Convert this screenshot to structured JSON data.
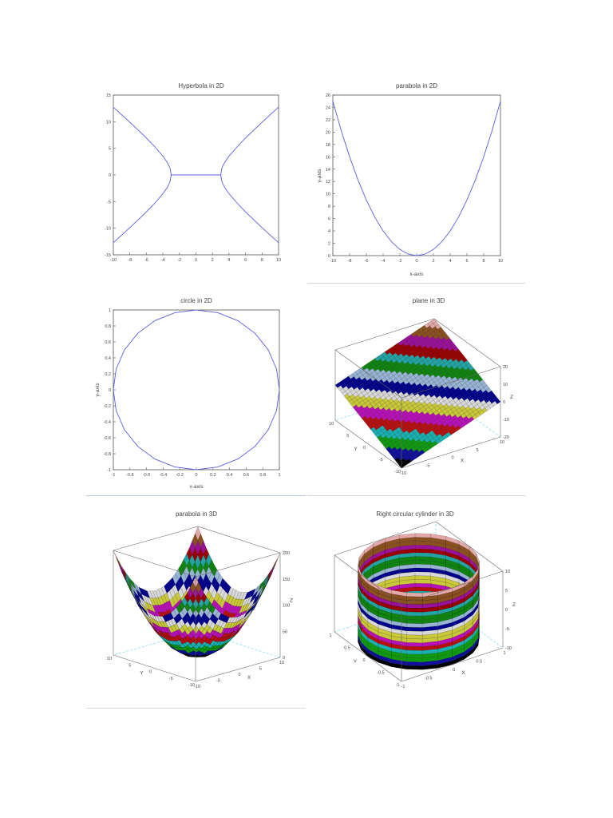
{
  "colormap": [
    "#000000",
    "#10109a",
    "#109a10",
    "#18b0b0",
    "#b81010",
    "#b810b8",
    "#c8c838",
    "#d8d8d8",
    "#00008c",
    "#98b4d4",
    "#108410",
    "#22a4a4",
    "#9a0000",
    "#9a109a",
    "#8a5020",
    "#e4a8a8"
  ],
  "chart_data": [
    {
      "type": "line",
      "title": "Hyperbola in 2D",
      "xlabel": "",
      "ylabel": "",
      "xlim": [
        -10,
        10
      ],
      "ylim": [
        -15,
        15
      ],
      "xticks": [
        -10,
        -8,
        -6,
        -4,
        -2,
        0,
        2,
        4,
        6,
        8,
        10
      ],
      "yticks": [
        -15,
        -10,
        -5,
        0,
        5,
        10,
        15
      ],
      "grid": false,
      "line_color": "#5c5ce0",
      "series": [
        {
          "x": [
            3,
            3.1,
            3.25,
            3.5,
            4,
            5,
            6,
            7,
            8,
            9,
            10
          ],
          "y": [
            0,
            1.04,
            1.67,
            2.4,
            3.53,
            5.33,
            6.93,
            8.43,
            9.89,
            11.31,
            12.72
          ]
        },
        {
          "x": [
            3,
            3.1,
            3.25,
            3.5,
            4,
            5,
            6,
            7,
            8,
            9,
            10
          ],
          "y": [
            0,
            -1.04,
            -1.67,
            -2.4,
            -3.53,
            -5.33,
            -6.93,
            -8.43,
            -9.89,
            -11.31,
            -12.72
          ]
        },
        {
          "x": [
            -3,
            -3.1,
            -3.25,
            -3.5,
            -4,
            -5,
            -6,
            -7,
            -8,
            -9,
            -10
          ],
          "y": [
            0,
            1.04,
            1.67,
            2.4,
            3.53,
            5.33,
            6.93,
            8.43,
            9.89,
            11.31,
            12.72
          ]
        },
        {
          "x": [
            -3,
            -3.1,
            -3.25,
            -3.5,
            -4,
            -5,
            -6,
            -7,
            -8,
            -9,
            -10
          ],
          "y": [
            0,
            -1.04,
            -1.67,
            -2.4,
            -3.53,
            -5.33,
            -6.93,
            -8.43,
            -9.89,
            -11.31,
            -12.72
          ]
        },
        {
          "x": [
            -3,
            3
          ],
          "y": [
            0,
            0
          ]
        }
      ]
    },
    {
      "type": "line",
      "title": "parabola in 2D",
      "xlabel": "x-axis",
      "ylabel": "y-axis",
      "xlim": [
        -10,
        10
      ],
      "ylim": [
        0,
        26
      ],
      "xticks": [
        -10,
        -8,
        -6,
        -4,
        -2,
        0,
        2,
        4,
        6,
        8,
        10
      ],
      "yticks": [
        0,
        2,
        4,
        6,
        8,
        10,
        12,
        14,
        16,
        18,
        20,
        22,
        24,
        26
      ],
      "grid": false,
      "line_color": "#5c5ce0",
      "series": [
        {
          "x": [
            -10,
            -9,
            -8,
            -7,
            -6,
            -5,
            -4,
            -3,
            -2,
            -1,
            0,
            1,
            2,
            3,
            4,
            5,
            6,
            7,
            8,
            9,
            10
          ],
          "y": [
            25,
            20.25,
            16,
            12.25,
            9,
            6.25,
            4,
            2.25,
            1,
            0.25,
            0,
            0.25,
            1,
            2.25,
            4,
            6.25,
            9,
            12.25,
            16,
            20.25,
            25
          ]
        }
      ]
    },
    {
      "type": "line",
      "title": "circle in 2D",
      "xlabel": "x-axis",
      "ylabel": "y-axis",
      "xlim": [
        -1,
        1
      ],
      "ylim": [
        -1,
        1
      ],
      "xticks": [
        -1,
        -0.8,
        -0.6,
        -0.4,
        -0.2,
        0,
        0.2,
        0.4,
        0.6,
        0.8,
        1
      ],
      "yticks": [
        -1,
        -0.8,
        -0.6,
        -0.4,
        -0.2,
        0,
        0.2,
        0.4,
        0.6,
        0.8,
        1
      ],
      "grid": false,
      "line_color": "#5c5ce0",
      "series": [
        {
          "x": [
            1,
            0.966,
            0.866,
            0.707,
            0.5,
            0.259,
            0,
            -0.259,
            -0.5,
            -0.707,
            -0.866,
            -0.966,
            -1,
            -0.966,
            -0.866,
            -0.707,
            -0.5,
            -0.259,
            0,
            0.259,
            0.5,
            0.707,
            0.866,
            0.966,
            1
          ],
          "y": [
            0,
            0.259,
            0.5,
            0.707,
            0.866,
            0.966,
            1,
            0.966,
            0.866,
            0.707,
            0.5,
            0.259,
            0,
            -0.259,
            -0.5,
            -0.707,
            -0.866,
            -0.966,
            -1,
            -0.966,
            -0.866,
            -0.707,
            -0.5,
            -0.259,
            0
          ]
        }
      ]
    },
    {
      "type": "surface3d",
      "title": "plane in 3D",
      "xlabel": "X",
      "ylabel": "Y",
      "zlabel": "Z",
      "xlim": [
        -10,
        10
      ],
      "ylim": [
        -10,
        10
      ],
      "zlim": [
        -20,
        20
      ],
      "xticks": [
        -10,
        -5,
        0,
        5,
        10
      ],
      "yticks": [
        -10,
        -5,
        0,
        5,
        10
      ],
      "zticks": [
        -20,
        -10,
        0,
        10,
        20
      ],
      "x": [
        -10,
        -8,
        -6,
        -4,
        -2,
        0,
        2,
        4,
        6,
        8,
        10
      ],
      "y": [
        -10,
        -8,
        -6,
        -4,
        -2,
        0,
        2,
        4,
        6,
        8,
        10
      ],
      "z": [
        [
          -20,
          -18,
          -16,
          -14,
          -12,
          -10,
          -8,
          -6,
          -4,
          -2,
          0
        ],
        [
          -18,
          -16,
          -14,
          -12,
          -10,
          -8,
          -6,
          -4,
          -2,
          0,
          2
        ],
        [
          -16,
          -14,
          -12,
          -10,
          -8,
          -6,
          -4,
          -2,
          0,
          2,
          4
        ],
        [
          -14,
          -12,
          -10,
          -8,
          -6,
          -4,
          -2,
          0,
          2,
          4,
          6
        ],
        [
          -12,
          -10,
          -8,
          -6,
          -4,
          -2,
          0,
          2,
          4,
          6,
          8
        ],
        [
          -10,
          -8,
          -6,
          -4,
          -2,
          0,
          2,
          4,
          6,
          8,
          10
        ],
        [
          -8,
          -6,
          -4,
          -2,
          0,
          2,
          4,
          6,
          8,
          10,
          12
        ],
        [
          -6,
          -4,
          -2,
          0,
          2,
          4,
          6,
          8,
          10,
          12,
          14
        ],
        [
          -4,
          -2,
          0,
          2,
          4,
          6,
          8,
          10,
          12,
          14,
          16
        ],
        [
          -2,
          0,
          2,
          4,
          6,
          8,
          10,
          12,
          14,
          16,
          18
        ],
        [
          0,
          2,
          4,
          6,
          8,
          10,
          12,
          14,
          16,
          18,
          20
        ]
      ]
    },
    {
      "type": "surface3d",
      "title": "parabola in 3D",
      "xlabel": "X",
      "ylabel": "Y",
      "zlabel": "Z",
      "xlim": [
        -10,
        10
      ],
      "ylim": [
        -10,
        10
      ],
      "zlim": [
        0,
        200
      ],
      "xticks": [
        -10,
        -5,
        0,
        5,
        10
      ],
      "yticks": [
        -10,
        -5,
        0,
        5,
        10
      ],
      "zticks": [
        0,
        50,
        100,
        150,
        200
      ],
      "x": [
        -10,
        -8,
        -6,
        -4,
        -2,
        0,
        2,
        4,
        6,
        8,
        10
      ],
      "y": [
        -10,
        -8,
        -6,
        -4,
        -2,
        0,
        2,
        4,
        6,
        8,
        10
      ],
      "z": [
        [
          200,
          164,
          136,
          116,
          104,
          100,
          104,
          116,
          136,
          164,
          200
        ],
        [
          164,
          128,
          100,
          80,
          68,
          64,
          68,
          80,
          100,
          128,
          164
        ],
        [
          136,
          100,
          72,
          52,
          40,
          36,
          40,
          52,
          72,
          100,
          136
        ],
        [
          116,
          80,
          52,
          32,
          20,
          16,
          20,
          32,
          52,
          80,
          116
        ],
        [
          104,
          68,
          40,
          20,
          8,
          4,
          8,
          20,
          40,
          68,
          104
        ],
        [
          100,
          64,
          36,
          16,
          4,
          0,
          4,
          16,
          36,
          64,
          100
        ],
        [
          104,
          68,
          40,
          20,
          8,
          4,
          8,
          20,
          40,
          68,
          104
        ],
        [
          116,
          80,
          52,
          32,
          20,
          16,
          20,
          32,
          52,
          80,
          116
        ],
        [
          136,
          100,
          72,
          52,
          40,
          36,
          40,
          52,
          72,
          100,
          136
        ],
        [
          164,
          128,
          100,
          80,
          68,
          64,
          68,
          80,
          100,
          128,
          164
        ],
        [
          200,
          164,
          136,
          116,
          104,
          100,
          104,
          116,
          136,
          164,
          200
        ]
      ]
    },
    {
      "type": "surface3d",
      "title": "Right circular cylinder in 3D",
      "xlabel": "X",
      "ylabel": "Y",
      "zlabel": "Z",
      "xlim": [
        -1,
        1
      ],
      "ylim": [
        -1,
        1
      ],
      "zlim": [
        -10,
        10
      ],
      "xticks": [
        -1,
        -0.5,
        0,
        0.5,
        1
      ],
      "yticks": [
        -1,
        -0.5,
        0,
        0.5,
        1
      ],
      "zticks": [
        -10,
        -5,
        0,
        5,
        10
      ],
      "ring_x": [
        1,
        0.966,
        0.866,
        0.707,
        0.5,
        0.259,
        0,
        -0.259,
        -0.5,
        -0.707,
        -0.866,
        -0.966,
        -1,
        -0.966,
        -0.866,
        -0.707,
        -0.5,
        -0.259,
        0,
        0.259,
        0.5,
        0.707,
        0.866,
        0.966
      ],
      "ring_y": [
        0,
        0.259,
        0.5,
        0.707,
        0.866,
        0.966,
        1,
        0.966,
        0.866,
        0.707,
        0.5,
        0.259,
        0,
        -0.259,
        -0.5,
        -0.707,
        -0.866,
        -0.966,
        -1,
        -0.966,
        -0.866,
        -0.707,
        -0.5,
        -0.259
      ],
      "z_levels": [
        -10,
        -8,
        -6,
        -4,
        -2,
        0,
        2,
        4,
        6,
        8,
        10
      ]
    }
  ]
}
